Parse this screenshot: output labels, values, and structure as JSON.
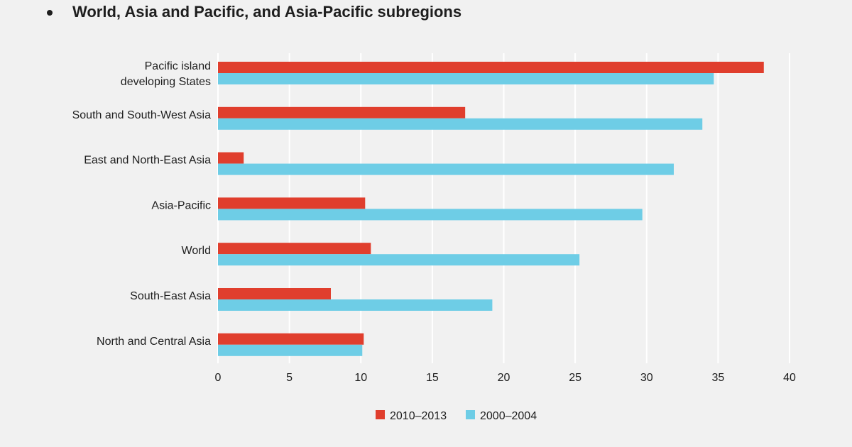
{
  "chart_data": {
    "type": "bar",
    "orientation": "horizontal",
    "title": "World, Asia and Pacific, and Asia-Pacific subregions",
    "categories": [
      [
        "Pacific island",
        "developing States"
      ],
      [
        "South and South-West Asia"
      ],
      [
        "East and North-East Asia"
      ],
      [
        "Asia-Pacific"
      ],
      [
        "World"
      ],
      [
        "South-East Asia"
      ],
      [
        "North and Central Asia"
      ]
    ],
    "series": [
      {
        "name": "2010–2013",
        "color": "#e03e2d",
        "values": [
          38.2,
          17.3,
          1.8,
          10.3,
          10.7,
          7.9,
          10.2
        ]
      },
      {
        "name": "2000–2004",
        "color": "#6ecde6",
        "values": [
          34.7,
          33.9,
          31.9,
          29.7,
          25.3,
          19.2,
          10.1
        ]
      }
    ],
    "xlim": [
      0,
      40
    ],
    "xticks": [
      0,
      5,
      10,
      15,
      20,
      25,
      30,
      35,
      40
    ],
    "grid": "vertical",
    "legend": "bottom-center"
  }
}
